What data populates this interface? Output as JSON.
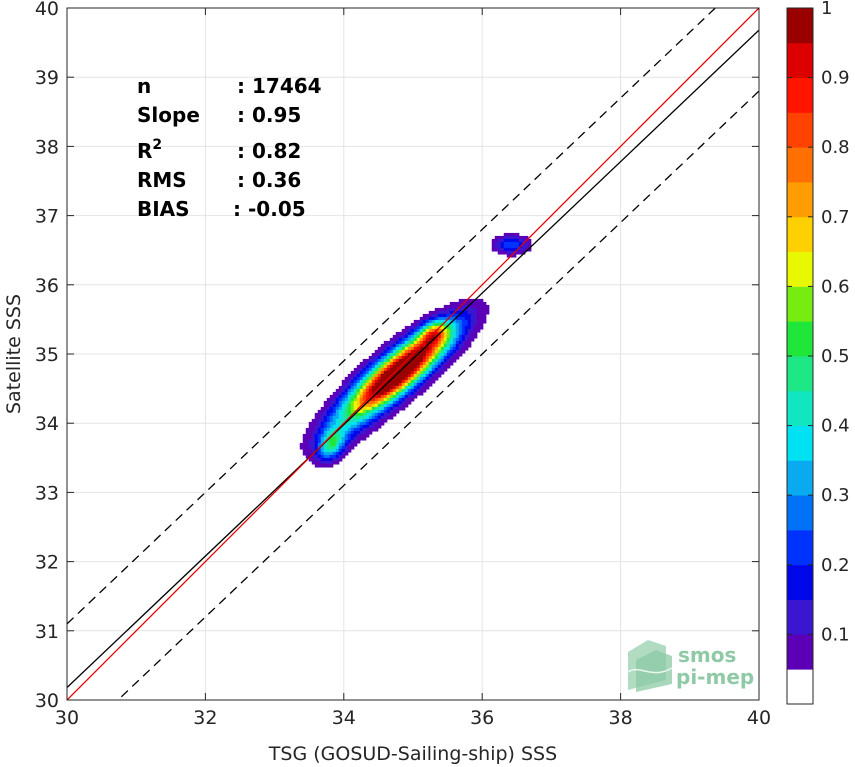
{
  "chart_data": {
    "type": "heatmap",
    "xlabel": "TSG (GOSUD-Sailing-ship) SSS",
    "ylabel": "Satellite SSS",
    "xlim": [
      30,
      40
    ],
    "ylim": [
      30,
      40
    ],
    "xticks": [
      "30",
      "32",
      "34",
      "36",
      "38",
      "40"
    ],
    "yticks": [
      "30",
      "31",
      "32",
      "33",
      "34",
      "35",
      "36",
      "37",
      "38",
      "39",
      "40"
    ],
    "grid": true,
    "stats": [
      {
        "label": "n",
        "sep": ":",
        "value": "17464"
      },
      {
        "label": "Slope",
        "sep": ":",
        "value": "0.95"
      },
      {
        "label": "R",
        "sup": "2",
        "sep": ":",
        "value": "0.82"
      },
      {
        "label": "RMS",
        "sep": ":",
        "value": "0.36"
      },
      {
        "label": "BIAS",
        "sep": ":",
        "value": "-0.05"
      }
    ],
    "lines": {
      "identity": {
        "color": "#e00000",
        "points": [
          [
            30,
            30
          ],
          [
            40,
            40
          ]
        ]
      },
      "regression": {
        "color": "#000000",
        "points": [
          [
            30,
            30.18
          ],
          [
            40,
            39.68
          ]
        ]
      },
      "upper_bound": {
        "color": "#000000",
        "dashed": true,
        "points": [
          [
            30,
            31.1
          ],
          [
            40,
            40.6
          ]
        ]
      },
      "lower_bound": {
        "color": "#000000",
        "dashed": true,
        "points": [
          [
            30,
            29.3
          ],
          [
            40,
            38.8
          ]
        ]
      }
    },
    "colorbar": {
      "range": [
        0,
        1
      ],
      "tick_labels": [
        "0.1",
        "0.2",
        "0.3",
        "0.4",
        "0.5",
        "0.6",
        "0.7",
        "0.8",
        "0.9",
        "1"
      ],
      "tick_values": [
        0.1,
        0.2,
        0.3,
        0.4,
        0.5,
        0.6,
        0.7,
        0.8,
        0.9,
        1.0
      ],
      "levels": [
        {
          "from": 0.0,
          "to": 0.05,
          "color": "#ffffff"
        },
        {
          "from": 0.05,
          "to": 0.1,
          "color": "#5c00b8"
        },
        {
          "from": 0.1,
          "to": 0.15,
          "color": "#3a16d0"
        },
        {
          "from": 0.15,
          "to": 0.2,
          "color": "#0008ea"
        },
        {
          "from": 0.2,
          "to": 0.25,
          "color": "#0032ff"
        },
        {
          "from": 0.25,
          "to": 0.3,
          "color": "#0072f8"
        },
        {
          "from": 0.3,
          "to": 0.35,
          "color": "#0aaaf0"
        },
        {
          "from": 0.35,
          "to": 0.4,
          "color": "#00e2f2"
        },
        {
          "from": 0.4,
          "to": 0.45,
          "color": "#10e6c0"
        },
        {
          "from": 0.45,
          "to": 0.5,
          "color": "#1ee886"
        },
        {
          "from": 0.5,
          "to": 0.55,
          "color": "#20e63a"
        },
        {
          "from": 0.55,
          "to": 0.6,
          "color": "#76ec10"
        },
        {
          "from": 0.6,
          "to": 0.65,
          "color": "#e8f800"
        },
        {
          "from": 0.65,
          "to": 0.7,
          "color": "#ffd000"
        },
        {
          "from": 0.7,
          "to": 0.75,
          "color": "#ff9c00"
        },
        {
          "from": 0.75,
          "to": 0.8,
          "color": "#ff7000"
        },
        {
          "from": 0.8,
          "to": 0.85,
          "color": "#ff4200"
        },
        {
          "from": 0.85,
          "to": 0.9,
          "color": "#ff1400"
        },
        {
          "from": 0.9,
          "to": 0.95,
          "color": "#dc0000"
        },
        {
          "from": 0.95,
          "to": 1.0,
          "color": "#9a0000"
        }
      ]
    },
    "density_peaks": [
      {
        "x": 34.78,
        "y": 34.72,
        "sx": 0.5,
        "sy": 0.42,
        "rho": 0.86,
        "peak": 1.0
      },
      {
        "x": 34.55,
        "y": 34.5,
        "sx": 0.55,
        "sy": 0.45,
        "rho": 0.85,
        "peak": 0.2
      },
      {
        "x": 35.3,
        "y": 35.3,
        "sx": 0.14,
        "sy": 0.12,
        "rho": 0.3,
        "peak": 0.38
      },
      {
        "x": 35.1,
        "y": 35.1,
        "sx": 0.45,
        "sy": 0.32,
        "rho": 0.75,
        "peak": 0.14
      },
      {
        "x": 33.82,
        "y": 33.68,
        "sx": 0.13,
        "sy": 0.15,
        "rho": 0.3,
        "peak": 0.38
      },
      {
        "x": 34.0,
        "y": 33.85,
        "sx": 0.3,
        "sy": 0.22,
        "rho": 0.6,
        "peak": 0.08
      },
      {
        "x": 36.42,
        "y": 36.58,
        "sx": 0.17,
        "sy": 0.09,
        "rho": 0.0,
        "peak": 0.24
      }
    ],
    "logo": {
      "line1": "smos",
      "line2": "pi-mep"
    }
  }
}
